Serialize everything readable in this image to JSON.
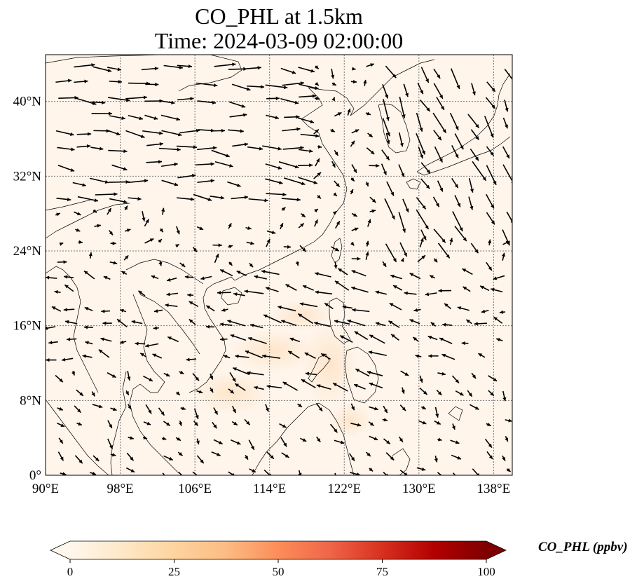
{
  "title": {
    "line1": "CO_PHL at 1.5km",
    "line2": "Time: 2024-03-09 02:00:00"
  },
  "map": {
    "lon_range": [
      90,
      140
    ],
    "lat_range": [
      0,
      45
    ],
    "lon_ticks": [
      {
        "value": 90,
        "label": "90°E"
      },
      {
        "value": 98,
        "label": "98°E"
      },
      {
        "value": 106,
        "label": "106°E"
      },
      {
        "value": 114,
        "label": "114°E"
      },
      {
        "value": 122,
        "label": "122°E"
      },
      {
        "value": 130,
        "label": "130°E"
      },
      {
        "value": 138,
        "label": "138°E"
      }
    ],
    "lat_ticks": [
      {
        "value": 0,
        "label": "0°"
      },
      {
        "value": 8,
        "label": "8°N"
      },
      {
        "value": 16,
        "label": "16°N"
      },
      {
        "value": 24,
        "label": "24°N"
      },
      {
        "value": 32,
        "label": "32°N"
      },
      {
        "value": 40,
        "label": "40°N"
      }
    ],
    "gridlines": true,
    "background_color": "#fff5eb",
    "plume_color": "#fde3c6",
    "coastline_color": "#000000",
    "wind_vector_color": "#000000"
  },
  "colorbar": {
    "label": "CO_PHL (ppbv)",
    "min": 0,
    "max": 100,
    "extend": "both",
    "colormap": "OrRd",
    "ticks": [
      {
        "value": 0,
        "label": "0"
      },
      {
        "value": 25,
        "label": "25"
      },
      {
        "value": 50,
        "label": "50"
      },
      {
        "value": 75,
        "label": "75"
      },
      {
        "value": 100,
        "label": "100"
      }
    ],
    "stops": [
      "#fff7ec",
      "#fee8c8",
      "#fdd49e",
      "#fdbb84",
      "#fc8d59",
      "#ef6548",
      "#d7301f",
      "#b30000",
      "#7f0000"
    ]
  }
}
